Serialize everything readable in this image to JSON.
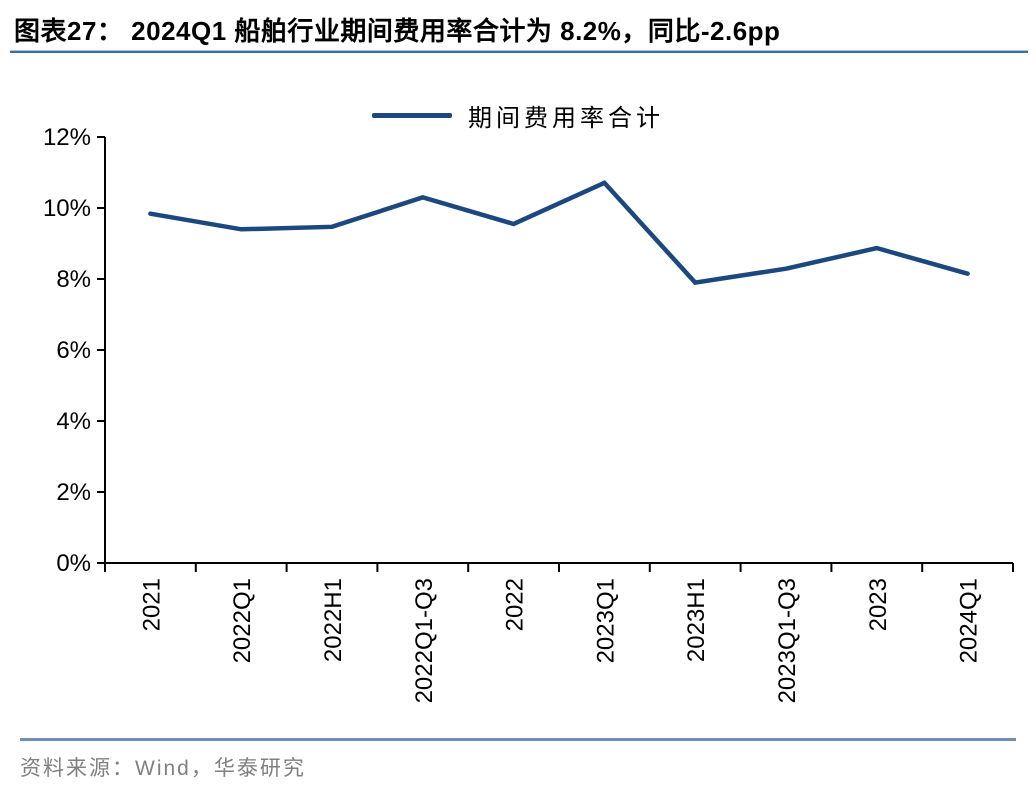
{
  "header": {
    "figure_label": "图表27：",
    "title": "图表27： 2024Q1 船舶行业期间费用率合计为 8.2%，同比-2.6pp"
  },
  "legend": {
    "label": "期间费用率合计"
  },
  "footer": {
    "source": "资料来源：Wind，华泰研究"
  },
  "colors": {
    "line": "#1C4880",
    "axis": "#000000",
    "title_rule": "#3D6DA3",
    "source_rule": "#6D8FB5",
    "source_text": "#808080"
  },
  "chart_data": {
    "type": "line",
    "title": "2024Q1 船舶行业期间费用率合计为 8.2%，同比-2.6pp",
    "categories": [
      "2021",
      "2022Q1",
      "2022H1",
      "2022Q1-Q3",
      "2022",
      "2023Q1",
      "2023H1",
      "2023Q1-Q3",
      "2023",
      "2024Q1"
    ],
    "series": [
      {
        "name": "期间费用率合计",
        "values": [
          9.84,
          9.4,
          9.47,
          10.3,
          9.55,
          10.71,
          7.9,
          8.29,
          8.87,
          8.15
        ]
      }
    ],
    "xlabel": "",
    "ylabel": "",
    "ylim": [
      0,
      12
    ],
    "y_tick_step": 2,
    "y_ticks": [
      "0%",
      "2%",
      "4%",
      "6%",
      "8%",
      "10%",
      "12%"
    ],
    "grid": false,
    "legend_position": "top-center",
    "unit": "percent"
  }
}
